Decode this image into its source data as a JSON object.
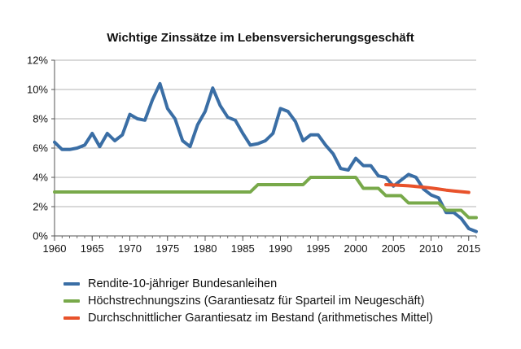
{
  "chart_data": {
    "type": "line",
    "title": "Wichtige Zinssätze im Lebensversicherungsgeschäft",
    "xlabel": "",
    "ylabel": "",
    "xlim": [
      1960,
      2016
    ],
    "ylim": [
      0,
      12
    ],
    "x_ticks": [
      1960,
      1965,
      1970,
      1975,
      1980,
      1985,
      1990,
      1995,
      2000,
      2005,
      2010,
      2015
    ],
    "y_ticks": [
      0,
      2,
      4,
      6,
      8,
      10,
      12
    ],
    "y_tick_labels": [
      "0%",
      "2%",
      "4%",
      "6%",
      "8%",
      "10%",
      "12%"
    ],
    "grid": "horizontal",
    "legend_position": "bottom-left",
    "series": [
      {
        "name": "Rendite-10-jähriger Bundesanleihen",
        "color": "#3a6ea5",
        "x": [
          1960,
          1961,
          1962,
          1963,
          1964,
          1965,
          1966,
          1967,
          1968,
          1969,
          1970,
          1971,
          1972,
          1973,
          1974,
          1975,
          1976,
          1977,
          1978,
          1979,
          1980,
          1981,
          1982,
          1983,
          1984,
          1985,
          1986,
          1987,
          1988,
          1989,
          1990,
          1991,
          1992,
          1993,
          1994,
          1995,
          1996,
          1997,
          1998,
          1999,
          2000,
          2001,
          2002,
          2003,
          2004,
          2005,
          2006,
          2007,
          2008,
          2009,
          2010,
          2011,
          2012,
          2013,
          2014,
          2015,
          2016
        ],
        "values": [
          6.4,
          5.9,
          5.9,
          6.0,
          6.2,
          7.0,
          6.1,
          7.0,
          6.5,
          6.9,
          8.3,
          8.0,
          7.9,
          9.3,
          10.4,
          8.7,
          8.0,
          6.5,
          6.1,
          7.6,
          8.5,
          10.1,
          8.9,
          8.1,
          7.9,
          7.0,
          6.2,
          6.3,
          6.5,
          7.0,
          8.7,
          8.5,
          7.8,
          6.5,
          6.9,
          6.9,
          6.2,
          5.6,
          4.6,
          4.5,
          5.3,
          4.8,
          4.8,
          4.1,
          4.0,
          3.4,
          3.8,
          4.2,
          4.0,
          3.2,
          2.8,
          2.6,
          1.6,
          1.6,
          1.2,
          0.5,
          0.3
        ]
      },
      {
        "name": "Höchstrechnungszins (Garantiesatz für Sparteil im Neugeschäft)",
        "color": "#78a94a",
        "x": [
          1960,
          1986,
          1987,
          1993,
          1994,
          2000,
          2001,
          2003,
          2004,
          2006,
          2007,
          2011,
          2012,
          2014,
          2015,
          2016
        ],
        "values": [
          3.0,
          3.0,
          3.5,
          3.5,
          4.0,
          4.0,
          3.25,
          3.25,
          2.75,
          2.75,
          2.25,
          2.25,
          1.75,
          1.75,
          1.25,
          1.25
        ]
      },
      {
        "name": "Durchschnittlicher Garantiesatz im Bestand (arithmetisches Mittel)",
        "color": "#e8522b",
        "x": [
          2004,
          2005,
          2006,
          2007,
          2008,
          2009,
          2010,
          2011,
          2012,
          2013,
          2014,
          2015
        ],
        "values": [
          3.5,
          3.48,
          3.45,
          3.42,
          3.38,
          3.33,
          3.27,
          3.2,
          3.13,
          3.07,
          3.02,
          2.97
        ]
      }
    ]
  }
}
